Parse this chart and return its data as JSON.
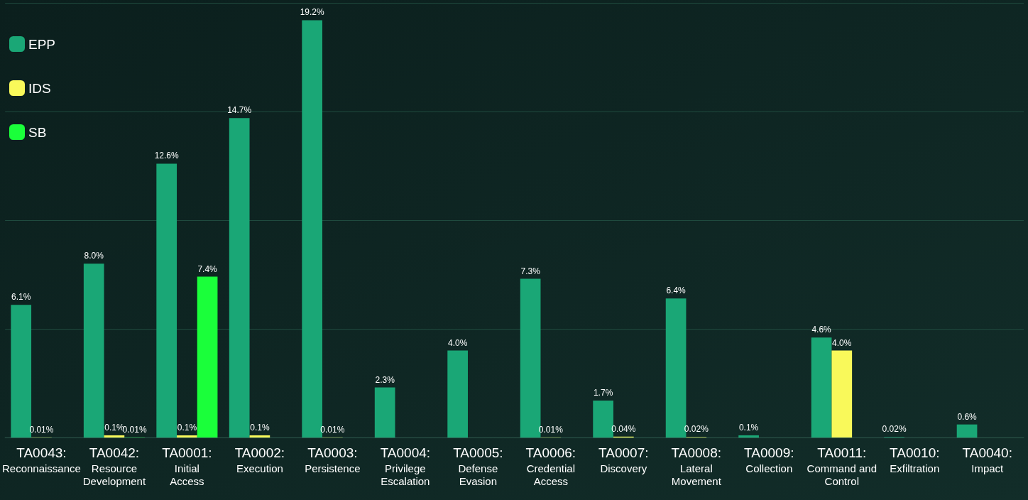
{
  "chart_data": {
    "type": "bar",
    "categories": [
      "TA0043: Reconnaissance",
      "TA0042: Resource Development",
      "TA0001: Initial Access",
      "TA0002: Execution",
      "TA0003: Persistence",
      "TA0004: Privilege Escalation",
      "TA0005: Defense Evasion",
      "TA0006: Credential Access",
      "TA0007: Discovery",
      "TA0008: Lateral Movement",
      "TA0009: Collection",
      "TA0011: Command and Control",
      "TA0010: Exfiltration",
      "TA0040: Impact"
    ],
    "series": [
      {
        "name": "EPP",
        "color": "#1aa776",
        "values": [
          6.1,
          8.0,
          12.6,
          14.7,
          19.2,
          2.3,
          4.0,
          7.3,
          1.7,
          6.4,
          0.1,
          4.6,
          0.02,
          0.6
        ],
        "value_labels": [
          "6.1%",
          "8.0%",
          "12.6%",
          "14.7%",
          "19.2%",
          "2.3%",
          "4.0%",
          "7.3%",
          "1.7%",
          "6.4%",
          "0.1%",
          "4.6%",
          "0.02%",
          "0.6%"
        ]
      },
      {
        "name": "IDS",
        "color": "#f9f95a",
        "values": [
          0.01,
          0.1,
          0.1,
          0.1,
          0.01,
          null,
          null,
          0.01,
          0.04,
          0.02,
          null,
          4.0,
          null,
          null
        ],
        "value_labels": [
          "0.01%",
          "0.1%",
          "0.1%",
          "0.1%",
          "0.01%",
          null,
          null,
          "0.01%",
          "0.04%",
          "0.02%",
          null,
          "4.0%",
          null,
          null
        ]
      },
      {
        "name": "SB",
        "color": "#1aff3a",
        "values": [
          null,
          0.01,
          7.4,
          null,
          null,
          null,
          null,
          null,
          null,
          null,
          null,
          null,
          null,
          null
        ],
        "value_labels": [
          null,
          "0.01%",
          "7.4%",
          null,
          null,
          null,
          null,
          null,
          null,
          null,
          null,
          null,
          null,
          null
        ]
      }
    ],
    "ylim": [
      0,
      20
    ],
    "yticks": [
      {
        "value": 0,
        "label": null
      },
      {
        "value": 5,
        "label": null
      },
      {
        "value": 10,
        "label": null
      },
      {
        "value": 15,
        "label": null
      },
      {
        "value": 20,
        "label": null
      }
    ],
    "grid": "y",
    "legend": "top left",
    "tick_labels": "x"
  }
}
